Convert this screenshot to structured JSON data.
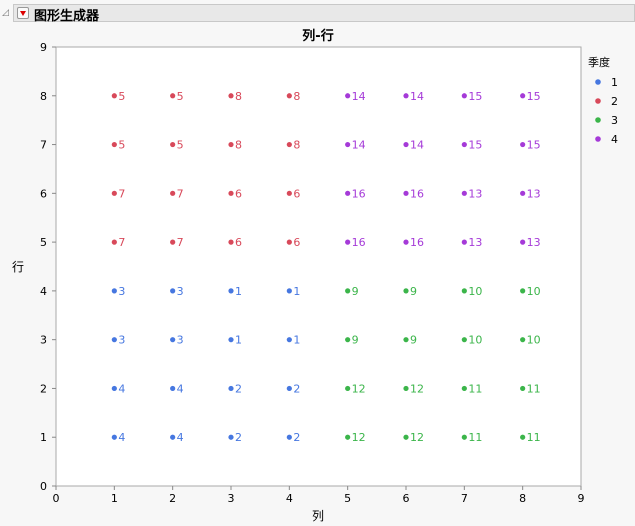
{
  "header": {
    "title": "图形生成器"
  },
  "chart_data": {
    "type": "scatter",
    "title": "列-行",
    "xlabel": "列",
    "ylabel": "行",
    "xlim": [
      0,
      9
    ],
    "ylim": [
      0,
      9
    ],
    "xticks": [
      0,
      1,
      2,
      3,
      4,
      5,
      6,
      7,
      8,
      9
    ],
    "yticks": [
      0,
      1,
      2,
      3,
      4,
      5,
      6,
      7,
      8,
      9
    ],
    "grid": false,
    "legend": {
      "title": "季度",
      "placement": "right",
      "entries": [
        "1",
        "2",
        "3",
        "4"
      ]
    },
    "colors": {
      "1": "#4677e0",
      "2": "#d8495a",
      "3": "#3bb54a",
      "4": "#a53ad8"
    },
    "label_grid": [
      [
        4,
        4,
        2,
        2,
        12,
        12,
        11,
        11
      ],
      [
        4,
        4,
        2,
        2,
        12,
        12,
        11,
        11
      ],
      [
        3,
        3,
        1,
        1,
        9,
        9,
        10,
        10
      ],
      [
        3,
        3,
        1,
        1,
        9,
        9,
        10,
        10
      ],
      [
        7,
        7,
        6,
        6,
        16,
        16,
        13,
        13
      ],
      [
        7,
        7,
        6,
        6,
        16,
        16,
        13,
        13
      ],
      [
        5,
        5,
        8,
        8,
        14,
        14,
        15,
        15
      ],
      [
        5,
        5,
        8,
        8,
        14,
        14,
        15,
        15
      ]
    ],
    "points_note_x": [
      1,
      2,
      3,
      4,
      5,
      6,
      7,
      8
    ],
    "points_note_y": [
      1,
      2,
      3,
      4,
      5,
      6,
      7,
      8
    ]
  }
}
